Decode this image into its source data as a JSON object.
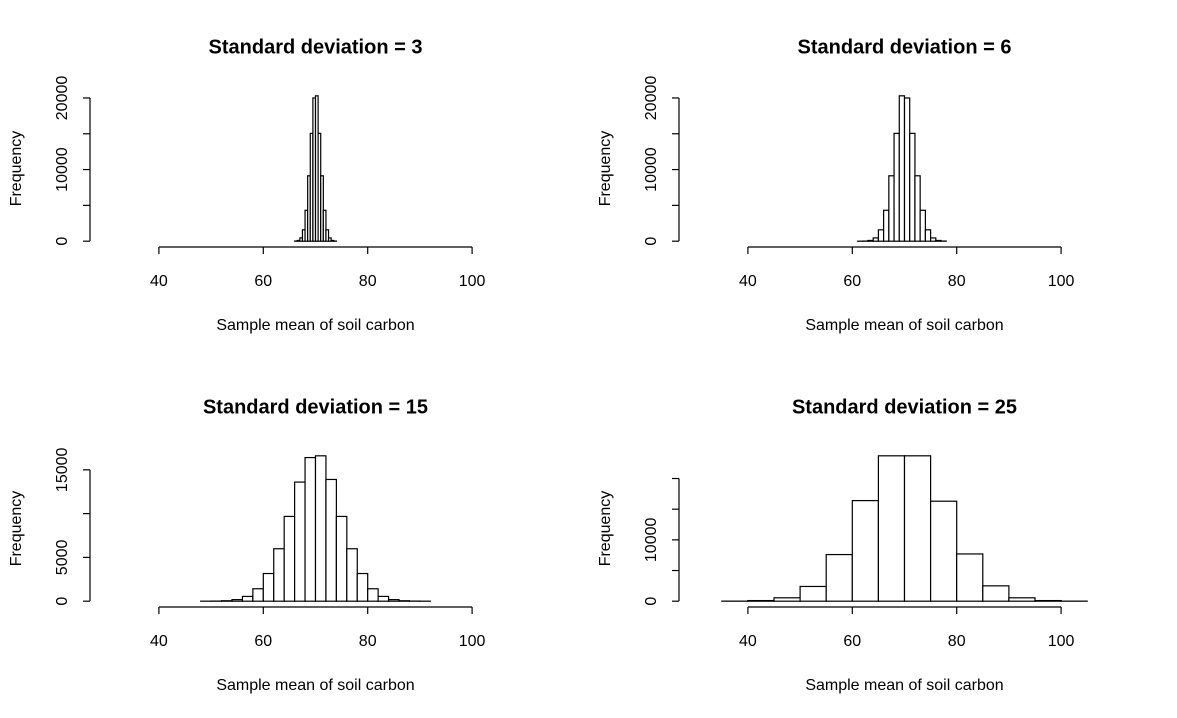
{
  "chart_data": [
    {
      "type": "histogram",
      "title": "Standard deviation = 3",
      "xlabel": "Sample mean of soil carbon",
      "ylabel": "Frequency",
      "color": "#ffffff",
      "bins": [
        66,
        66.5,
        67,
        67.5,
        68,
        68.5,
        69,
        69.5,
        70,
        70.5,
        71,
        71.5,
        72,
        72.5,
        73,
        73.5,
        74
      ],
      "values": [
        18,
        101,
        455,
        1587,
        4317,
        9132,
        15055,
        20000,
        20300,
        15055,
        9132,
        4317,
        1587,
        455,
        101,
        18
      ],
      "xlim": [
        30,
        110
      ],
      "xticks": [
        40,
        60,
        80,
        100
      ],
      "ylim": [
        0,
        20300
      ],
      "yticks": [
        0,
        10000,
        20000
      ],
      "yminorticks": [
        5000,
        15000
      ]
    },
    {
      "type": "histogram",
      "title": "Standard deviation = 6",
      "xlabel": "Sample mean of soil carbon",
      "ylabel": "Frequency",
      "color": "#ffffff",
      "bins": [
        61,
        62,
        63,
        64,
        65,
        66,
        67,
        68,
        69,
        70,
        71,
        72,
        73,
        74,
        75,
        76,
        77,
        78
      ],
      "values": [
        2,
        18,
        101,
        455,
        1587,
        4317,
        9132,
        15055,
        20300,
        20000,
        15055,
        9132,
        4317,
        1587,
        455,
        101,
        18
      ],
      "xlim": [
        30,
        110
      ],
      "xticks": [
        40,
        60,
        80,
        100
      ],
      "ylim": [
        0,
        20300
      ],
      "yticks": [
        0,
        10000,
        20000
      ],
      "yminorticks": [
        5000,
        15000
      ]
    },
    {
      "type": "histogram",
      "title": "Standard deviation = 15",
      "xlabel": "Sample mean of soil carbon",
      "ylabel": "Frequency",
      "color": "#ffffff",
      "bins": [
        46,
        48,
        50,
        52,
        54,
        56,
        58,
        60,
        62,
        64,
        66,
        68,
        70,
        72,
        74,
        76,
        78,
        80,
        82,
        84,
        86,
        88,
        90,
        92
      ],
      "values": [
        0,
        2,
        12,
        49,
        177,
        543,
        1419,
        3158,
        5988,
        9679,
        13600,
        16400,
        16600,
        13900,
        9679,
        5988,
        3158,
        1419,
        543,
        177,
        49,
        12,
        2
      ],
      "xlim": [
        30,
        110
      ],
      "xticks": [
        40,
        60,
        80,
        100
      ],
      "ylim": [
        0,
        16600
      ],
      "yticks": [
        0,
        5000,
        15000
      ],
      "yminorticks": [
        10000
      ]
    },
    {
      "type": "histogram",
      "title": "Standard deviation = 25",
      "xlabel": "Sample mean of soil carbon",
      "ylabel": "Frequency",
      "color": "#ffffff",
      "bins": [
        30,
        35,
        40,
        45,
        50,
        55,
        60,
        65,
        70,
        75,
        80,
        85,
        90,
        95,
        100,
        105,
        110
      ],
      "values": [
        0,
        10,
        100,
        550,
        2400,
        7600,
        16400,
        23700,
        23700,
        16300,
        7700,
        2500,
        550,
        100,
        10,
        0
      ],
      "xlim": [
        30,
        110
      ],
      "xticks": [
        40,
        60,
        80,
        100
      ],
      "ylim": [
        0,
        23700
      ],
      "yticks": [
        0,
        10000
      ],
      "yminorticks": [
        5000,
        15000,
        20000
      ]
    }
  ]
}
